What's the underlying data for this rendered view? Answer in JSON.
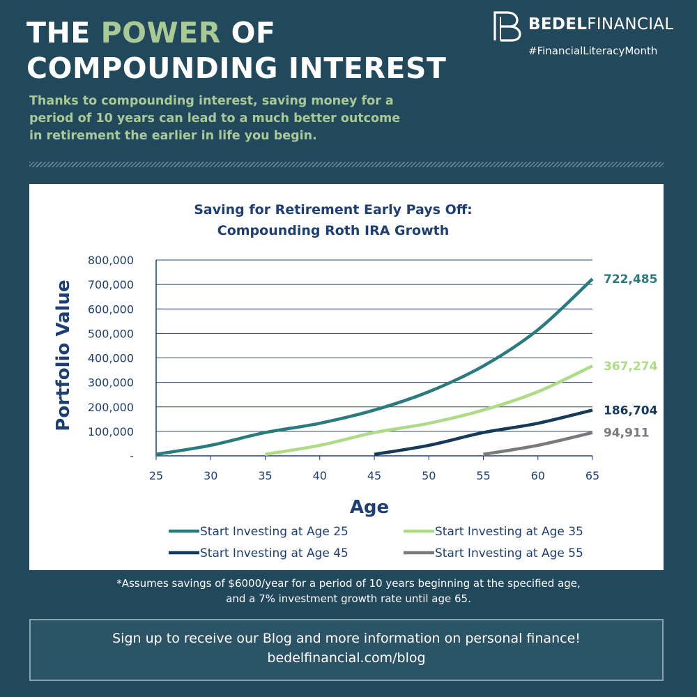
{
  "header": {
    "title_word1": "THE",
    "title_highlight": "POWER",
    "title_word3": "OF",
    "title_line2": "COMPOUNDING INTEREST",
    "subtitle": "Thanks to compounding interest, saving money for a period of 10 years can lead to a much better outcome in retirement the earlier in life you begin."
  },
  "brand": {
    "name_bold": "BEDEL",
    "name_light": "FINANCIAL",
    "hashtag": "#FinancialLiteracyMonth",
    "colors": {
      "background": "#22485c",
      "accent_green": "#a9c995"
    }
  },
  "chart_data": {
    "type": "line",
    "title_line1": "Saving for Retirement Early Pays Off:",
    "title_line2": "Compounding Roth IRA Growth",
    "xlabel": "Age",
    "ylabel": "Portfolio Value",
    "xlim": [
      25,
      65
    ],
    "ylim": [
      0,
      800000
    ],
    "xticks": [
      "25",
      "30",
      "35",
      "40",
      "45",
      "50",
      "55",
      "60",
      "65"
    ],
    "yticks": [
      "-",
      "100,000",
      "200,000",
      "300,000",
      "400,000",
      "500,000",
      "600,000",
      "700,000",
      "800,000"
    ],
    "grid": "horizontal",
    "legend_position": "bottom",
    "series": [
      {
        "name": "Start Investing at Age 25",
        "color": "#2a7b7e",
        "end_label": "722,485",
        "x": [
          25,
          30,
          35,
          40,
          45,
          50,
          55,
          60,
          65
        ],
        "y": [
          6000,
          43000,
          95000,
          133000,
          187000,
          262000,
          367000,
          515000,
          722485
        ]
      },
      {
        "name": "Start Investing at Age 35",
        "color": "#aedb86",
        "end_label": "367,274",
        "x": [
          35,
          40,
          45,
          50,
          55,
          60,
          65
        ],
        "y": [
          6000,
          43000,
          95000,
          133000,
          187000,
          262000,
          367274
        ]
      },
      {
        "name": "Start Investing at Age 45",
        "color": "#163a5a",
        "end_label": "186,704",
        "x": [
          45,
          50,
          55,
          60,
          65
        ],
        "y": [
          6000,
          43000,
          95000,
          133000,
          186704
        ]
      },
      {
        "name": "Start Investing at Age 55",
        "color": "#7a7a7a",
        "end_label": "94,911",
        "x": [
          55,
          60,
          65
        ],
        "y": [
          6000,
          43000,
          94911
        ]
      }
    ]
  },
  "footnote": {
    "line1": "*Assumes savings of $6000/year for a period of 10 years beginning at the specified age,",
    "line2": "and a 7% investment growth rate until age 65."
  },
  "cta": {
    "line1": "Sign up to receive our Blog and more information on personal finance!",
    "line2": "bedelfinancial.com/blog"
  }
}
